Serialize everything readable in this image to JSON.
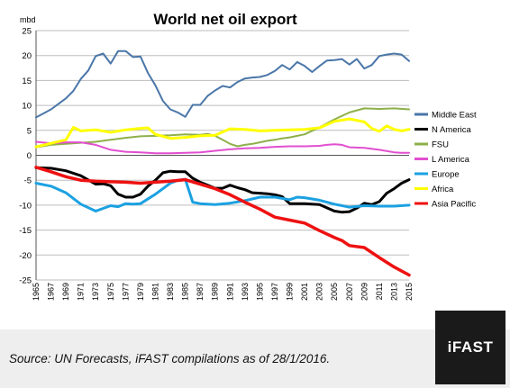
{
  "source_note": "Source: UN Forecasts, iFAST compilations as of 28/1/2016.",
  "logo_text": "iFAST",
  "chart_data": {
    "type": "line",
    "title": "World net oil export",
    "ylabel": "mbd",
    "ylim": [
      -25,
      25
    ],
    "yticks": [
      25,
      20,
      15,
      10,
      5,
      0,
      -5,
      -10,
      -15,
      -20,
      -25
    ],
    "xlim": [
      1965,
      2015
    ],
    "xticks": [
      1965,
      1967,
      1969,
      1971,
      1973,
      1975,
      1977,
      1979,
      1981,
      1983,
      1985,
      1987,
      1989,
      1991,
      1993,
      1995,
      1997,
      1999,
      2001,
      2003,
      2005,
      2007,
      2009,
      2011,
      2013,
      2015
    ],
    "grid": "horizontal",
    "legend_position": "right",
    "series": [
      {
        "name": "Middle East",
        "color": "#4a76a8",
        "width": 2,
        "x": [
          1965,
          1966,
          1967,
          1968,
          1969,
          1970,
          1971,
          1972,
          1973,
          1974,
          1975,
          1976,
          1977,
          1978,
          1979,
          1980,
          1981,
          1982,
          1983,
          1984,
          1985,
          1986,
          1987,
          1988,
          1989,
          1990,
          1991,
          1992,
          1993,
          1994,
          1995,
          1996,
          1997,
          1998,
          1999,
          2000,
          2001,
          2002,
          2003,
          2004,
          2005,
          2006,
          2007,
          2008,
          2009,
          2010,
          2011,
          2012,
          2013,
          2014,
          2015
        ],
        "y": [
          7.6,
          8.4,
          9.2,
          10.3,
          11.4,
          12.9,
          15.3,
          17.0,
          19.9,
          20.4,
          18.4,
          20.9,
          20.9,
          19.7,
          19.8,
          16.5,
          14.0,
          10.9,
          9.2,
          8.6,
          7.7,
          10.1,
          10.1,
          11.9,
          13.0,
          13.9,
          13.6,
          14.7,
          15.4,
          15.6,
          15.7,
          16.1,
          16.9,
          18.1,
          17.2,
          18.7,
          17.9,
          16.7,
          17.9,
          19.0,
          19.1,
          19.3,
          18.2,
          19.3,
          17.4,
          18.1,
          19.9,
          20.2,
          20.4,
          20.2,
          18.9
        ]
      },
      {
        "name": "N America",
        "color": "#000000",
        "width": 3,
        "x": [
          1965,
          1967,
          1969,
          1971,
          1973,
          1974,
          1975,
          1976,
          1977,
          1978,
          1979,
          1980,
          1981,
          1982,
          1983,
          1984,
          1985,
          1986,
          1987,
          1988,
          1989,
          1990,
          1991,
          1992,
          1993,
          1994,
          1995,
          1996,
          1997,
          1998,
          1999,
          2001,
          2003,
          2005,
          2006,
          2007,
          2008,
          2009,
          2010,
          2011,
          2012,
          2013,
          2014,
          2015
        ],
        "y": [
          -2.5,
          -2.6,
          -3.1,
          -4.1,
          -5.8,
          -5.7,
          -6.1,
          -7.8,
          -8.4,
          -8.4,
          -7.8,
          -6.2,
          -5.0,
          -3.5,
          -3.2,
          -3.3,
          -3.3,
          -4.6,
          -5.4,
          -6.0,
          -6.6,
          -6.6,
          -6.0,
          -6.5,
          -6.9,
          -7.5,
          -7.6,
          -7.7,
          -7.9,
          -8.3,
          -9.7,
          -9.7,
          -9.9,
          -11.2,
          -11.4,
          -11.3,
          -10.6,
          -9.6,
          -9.9,
          -9.3,
          -7.6,
          -6.7,
          -5.6,
          -4.9
        ]
      },
      {
        "name": "FSU",
        "color": "#8eb04a",
        "width": 2,
        "x": [
          1965,
          1967,
          1969,
          1971,
          1973,
          1975,
          1977,
          1979,
          1981,
          1983,
          1985,
          1987,
          1988,
          1989,
          1990,
          1991,
          1992,
          1993,
          1994,
          1995,
          1996,
          1997,
          1998,
          1999,
          2001,
          2003,
          2005,
          2007,
          2009,
          2011,
          2013,
          2015
        ],
        "y": [
          1.6,
          2.1,
          2.3,
          2.5,
          2.7,
          3.1,
          3.5,
          3.8,
          3.9,
          4.0,
          4.2,
          4.1,
          4.3,
          3.9,
          3.1,
          2.3,
          1.8,
          2.1,
          2.3,
          2.6,
          2.9,
          3.1,
          3.4,
          3.6,
          4.2,
          5.6,
          7.2,
          8.6,
          9.4,
          9.3,
          9.4,
          9.2
        ]
      },
      {
        "name": "L America",
        "color": "#e24fd0",
        "width": 2,
        "x": [
          1965,
          1967,
          1969,
          1971,
          1973,
          1975,
          1977,
          1979,
          1981,
          1983,
          1985,
          1987,
          1989,
          1991,
          1993,
          1995,
          1997,
          1999,
          2001,
          2003,
          2004,
          2005,
          2006,
          2007,
          2009,
          2011,
          2013,
          2014,
          2015
        ],
        "y": [
          2.7,
          2.4,
          2.6,
          2.6,
          2.1,
          1.1,
          0.7,
          0.6,
          0.4,
          0.4,
          0.5,
          0.6,
          0.9,
          1.2,
          1.4,
          1.5,
          1.7,
          1.8,
          1.8,
          1.9,
          2.1,
          2.2,
          2.1,
          1.6,
          1.5,
          1.1,
          0.6,
          0.5,
          0.5
        ]
      },
      {
        "name": "Europe",
        "color": "#1ba1e2",
        "width": 3,
        "x": [
          1965,
          1967,
          1969,
          1971,
          1973,
          1975,
          1976,
          1977,
          1978,
          1979,
          1981,
          1983,
          1984,
          1985,
          1986,
          1987,
          1989,
          1991,
          1993,
          1995,
          1997,
          1999,
          2000,
          2001,
          2003,
          2005,
          2007,
          2009,
          2011,
          2013,
          2015
        ],
        "y": [
          -5.6,
          -6.2,
          -7.5,
          -9.8,
          -11.2,
          -10.1,
          -10.3,
          -9.7,
          -9.8,
          -9.7,
          -7.8,
          -5.6,
          -5.0,
          -4.8,
          -9.4,
          -9.7,
          -9.9,
          -9.6,
          -9.1,
          -8.4,
          -8.4,
          -8.9,
          -8.4,
          -8.5,
          -9.0,
          -9.8,
          -10.4,
          -10.1,
          -10.2,
          -10.2,
          -10.0
        ]
      },
      {
        "name": "Africa",
        "color": "#ffff00",
        "width": 3,
        "x": [
          1965,
          1967,
          1969,
          1970,
          1971,
          1973,
          1975,
          1977,
          1979,
          1980,
          1981,
          1983,
          1985,
          1987,
          1989,
          1991,
          1993,
          1995,
          1997,
          1999,
          2001,
          2003,
          2005,
          2007,
          2009,
          2010,
          2011,
          2012,
          2013,
          2014,
          2015
        ],
        "y": [
          1.7,
          2.4,
          3.1,
          5.6,
          4.9,
          5.1,
          4.6,
          5.1,
          5.4,
          5.5,
          4.2,
          3.4,
          3.6,
          3.9,
          4.0,
          5.3,
          5.2,
          4.9,
          5.0,
          5.1,
          5.2,
          5.5,
          6.8,
          7.3,
          6.7,
          5.4,
          4.8,
          5.9,
          5.2,
          4.9,
          5.2
        ]
      },
      {
        "name": "Asia Pacific",
        "color": "#ee1111",
        "width": 3.5,
        "x": [
          1965,
          1967,
          1969,
          1971,
          1973,
          1975,
          1977,
          1979,
          1981,
          1983,
          1985,
          1987,
          1989,
          1991,
          1993,
          1995,
          1997,
          1999,
          2001,
          2003,
          2005,
          2006,
          2007,
          2009,
          2011,
          2013,
          2015
        ],
        "y": [
          -2.4,
          -3.3,
          -4.3,
          -5.0,
          -5.2,
          -5.3,
          -5.4,
          -5.6,
          -5.4,
          -5.2,
          -4.9,
          -5.8,
          -6.7,
          -7.9,
          -9.4,
          -10.8,
          -12.4,
          -13.0,
          -13.6,
          -15.1,
          -16.5,
          -17.1,
          -18.1,
          -18.5,
          -20.5,
          -22.4,
          -24.0
        ]
      }
    ]
  }
}
